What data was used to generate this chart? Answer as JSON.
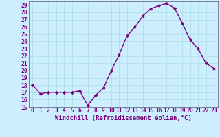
{
  "x": [
    0,
    1,
    2,
    3,
    4,
    5,
    6,
    7,
    8,
    9,
    10,
    11,
    12,
    13,
    14,
    15,
    16,
    17,
    18,
    19,
    20,
    21,
    22,
    23
  ],
  "y": [
    18,
    16.8,
    17,
    17,
    17,
    17,
    17.2,
    15.2,
    16.6,
    17.6,
    20,
    22.2,
    24.8,
    26,
    27.5,
    28.5,
    28.9,
    29.2,
    28.6,
    26.5,
    24.2,
    23,
    21,
    20.3
  ],
  "line_color": "#7b007b",
  "marker": "D",
  "marker_size": 2.2,
  "bg_color": "#cceeff",
  "grid_color": "#aadddd",
  "xlabel": "Windchill (Refroidissement éolien,°C)",
  "ylim": [
    15,
    29.5
  ],
  "xlim": [
    -0.5,
    23.5
  ],
  "yticks": [
    15,
    16,
    17,
    18,
    19,
    20,
    21,
    22,
    23,
    24,
    25,
    26,
    27,
    28,
    29
  ],
  "xticks": [
    0,
    1,
    2,
    3,
    4,
    5,
    6,
    7,
    8,
    9,
    10,
    11,
    12,
    13,
    14,
    15,
    16,
    17,
    18,
    19,
    20,
    21,
    22,
    23
  ],
  "tick_color": "#7b007b",
  "axis_label_fontsize": 6.5,
  "tick_fontsize": 5.8,
  "line_width": 1.0
}
